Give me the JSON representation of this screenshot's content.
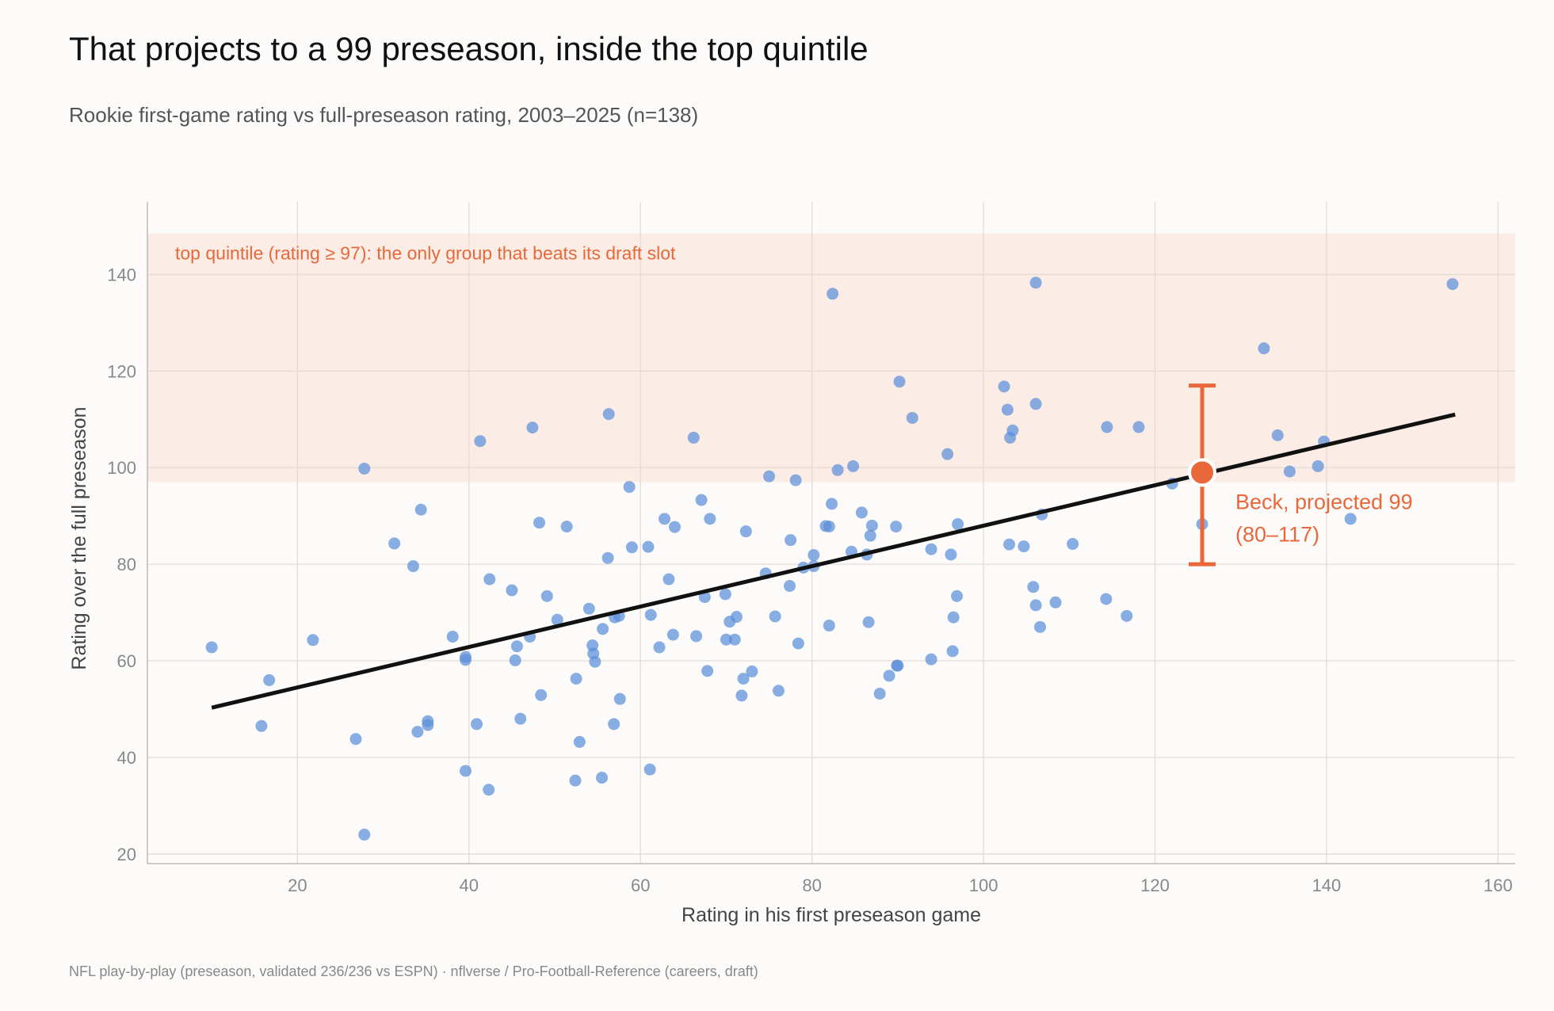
{
  "page": {
    "title": "That projects to a 99 preseason, inside the top quintile",
    "subtitle": "Rookie first-game rating vs full-preseason rating, 2003–2025 (n=138)",
    "footer": "NFL play-by-play (preseason, validated 236/236 vs ESPN)  ·  nflverse / Pro-Football-Reference (careers, draft)"
  },
  "colors": {
    "points": "#5b8fd9",
    "accent": "#e8683a",
    "band": "#fbece5",
    "trend": "#111111"
  },
  "chart_data": {
    "type": "scatter",
    "title": "That projects to a 99 preseason, inside the top quintile",
    "subtitle": "Rookie first-game rating vs full-preseason rating, 2003–2025 (n=138)",
    "xlabel": "Rating in his first preseason game",
    "ylabel": "Rating over the full preseason",
    "xlim": [
      2.5,
      162
    ],
    "ylim": [
      18,
      155
    ],
    "xticks": [
      20,
      40,
      60,
      80,
      100,
      120,
      140,
      160
    ],
    "yticks": [
      20,
      40,
      60,
      80,
      100,
      120,
      140
    ],
    "grid": true,
    "band": {
      "y_from": 97,
      "y_to": 148.5,
      "label": "top quintile (rating ≥ 97): the only group that beats its draft slot"
    },
    "trend": {
      "x": [
        10,
        155
      ],
      "y": [
        50.3,
        111
      ]
    },
    "highlight": {
      "x": 125.5,
      "y": 99,
      "low": 80,
      "high": 117,
      "label_line1": "Beck, projected 99",
      "label_line2": "(80–117)"
    },
    "points": [
      [
        10,
        62.8
      ],
      [
        15.8,
        46.5
      ],
      [
        16.7,
        56
      ],
      [
        21.8,
        64.3
      ],
      [
        26.8,
        43.8
      ],
      [
        27.8,
        24
      ],
      [
        27.8,
        99.8
      ],
      [
        31.3,
        84.3
      ],
      [
        33.5,
        79.6
      ],
      [
        34,
        45.3
      ],
      [
        34.4,
        91.3
      ],
      [
        35.2,
        46.7
      ],
      [
        35.2,
        47.5
      ],
      [
        38.1,
        65
      ],
      [
        39.6,
        37.2
      ],
      [
        39.6,
        60.2
      ],
      [
        39.6,
        60.8
      ],
      [
        40.9,
        46.9
      ],
      [
        41.3,
        105.5
      ],
      [
        42.3,
        33.3
      ],
      [
        42.4,
        76.9
      ],
      [
        45,
        74.6
      ],
      [
        45.4,
        60.1
      ],
      [
        45.6,
        63
      ],
      [
        46,
        48
      ],
      [
        47.1,
        65
      ],
      [
        47.4,
        108.3
      ],
      [
        48.2,
        88.6
      ],
      [
        48.4,
        52.9
      ],
      [
        49.1,
        73.4
      ],
      [
        50.3,
        68.5
      ],
      [
        51.4,
        87.8
      ],
      [
        52.4,
        35.2
      ],
      [
        52.5,
        56.3
      ],
      [
        52.9,
        43.2
      ],
      [
        54,
        70.8
      ],
      [
        54.4,
        63.2
      ],
      [
        54.5,
        61.5
      ],
      [
        54.7,
        59.8
      ],
      [
        55.5,
        35.8
      ],
      [
        55.6,
        66.6
      ],
      [
        56.2,
        81.3
      ],
      [
        56.3,
        111.1
      ],
      [
        56.9,
        46.9
      ],
      [
        57,
        69
      ],
      [
        57.5,
        69.3
      ],
      [
        57.6,
        52.1
      ],
      [
        58.7,
        96
      ],
      [
        59,
        83.5
      ],
      [
        60.9,
        83.6
      ],
      [
        61.1,
        37.5
      ],
      [
        61.2,
        69.5
      ],
      [
        62.2,
        62.8
      ],
      [
        62.8,
        89.4
      ],
      [
        63.3,
        76.9
      ],
      [
        63.8,
        65.4
      ],
      [
        64,
        87.7
      ],
      [
        66.2,
        106.2
      ],
      [
        66.5,
        65.1
      ],
      [
        67.1,
        93.3
      ],
      [
        67.5,
        73.2
      ],
      [
        67.8,
        57.9
      ],
      [
        68.1,
        89.4
      ],
      [
        69.9,
        73.8
      ],
      [
        70,
        64.4
      ],
      [
        70.4,
        68.1
      ],
      [
        71,
        64.4
      ],
      [
        71.2,
        69.1
      ],
      [
        71.8,
        52.8
      ],
      [
        72,
        56.3
      ],
      [
        72.3,
        86.8
      ],
      [
        73,
        57.8
      ],
      [
        74.6,
        78.1
      ],
      [
        75,
        98.2
      ],
      [
        75.7,
        69.2
      ],
      [
        76.1,
        53.8
      ],
      [
        77.4,
        75.5
      ],
      [
        77.5,
        85
      ],
      [
        78.1,
        97.4
      ],
      [
        78.4,
        63.6
      ],
      [
        79,
        79.3
      ],
      [
        80.2,
        79.6
      ],
      [
        80.2,
        81.9
      ],
      [
        81.6,
        87.9
      ],
      [
        82,
        67.3
      ],
      [
        82,
        87.8
      ],
      [
        82.3,
        92.5
      ],
      [
        82.4,
        136
      ],
      [
        83,
        99.5
      ],
      [
        84.6,
        82.6
      ],
      [
        84.8,
        100.3
      ],
      [
        85.8,
        90.7
      ],
      [
        86.4,
        82
      ],
      [
        86.6,
        68
      ],
      [
        86.8,
        85.9
      ],
      [
        87,
        88
      ],
      [
        87.9,
        53.2
      ],
      [
        89,
        56.9
      ],
      [
        89.9,
        59
      ],
      [
        90,
        59
      ],
      [
        90.2,
        117.8
      ],
      [
        89.8,
        87.8
      ],
      [
        91.7,
        110.3
      ],
      [
        93.9,
        60.3
      ],
      [
        93.9,
        83.1
      ],
      [
        95.8,
        102.8
      ],
      [
        96.2,
        82
      ],
      [
        96.4,
        62
      ],
      [
        96.5,
        69
      ],
      [
        96.9,
        73.4
      ],
      [
        97,
        88.3
      ],
      [
        102.4,
        116.8
      ],
      [
        102.8,
        112
      ],
      [
        103,
        84.1
      ],
      [
        103.1,
        106.2
      ],
      [
        103.4,
        107.7
      ],
      [
        104.7,
        83.7
      ],
      [
        105.8,
        75.3
      ],
      [
        106.1,
        71.5
      ],
      [
        106.1,
        138.3
      ],
      [
        106.1,
        113.2
      ],
      [
        106.6,
        67
      ],
      [
        106.8,
        90.3
      ],
      [
        108.4,
        72.1
      ],
      [
        110.4,
        84.2
      ],
      [
        114.3,
        72.8
      ],
      [
        114.4,
        108.4
      ],
      [
        116.7,
        69.3
      ],
      [
        118.1,
        108.4
      ],
      [
        122,
        96.7
      ],
      [
        125.5,
        88.3
      ],
      [
        132.7,
        124.7
      ],
      [
        134.3,
        106.7
      ],
      [
        135.7,
        99.2
      ],
      [
        139,
        100.3
      ],
      [
        139.7,
        105.4
      ],
      [
        142.8,
        89.4
      ],
      [
        154.7,
        138
      ]
    ]
  }
}
